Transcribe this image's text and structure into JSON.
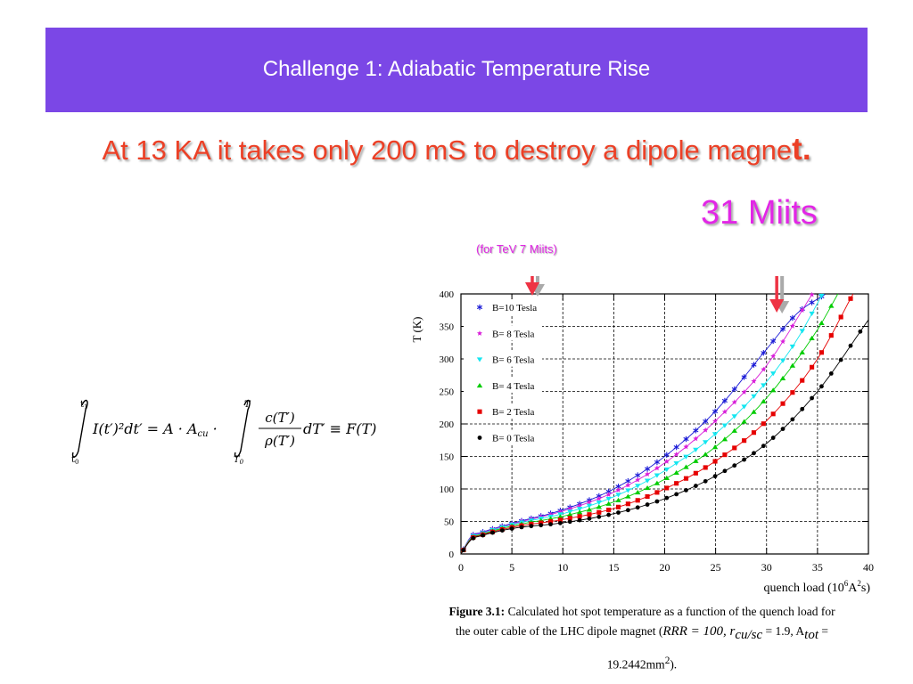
{
  "slide": {
    "title": "Challenge 1: Adiabatic Temperature Rise",
    "subtitle_main": "At 13 KA it takes only 200 mS to destroy a dipole magne",
    "subtitle_tail": "t.",
    "annotation_miits": "31 Miits",
    "annotation_tev": "(for TeV   7 Miits)"
  },
  "formula": {
    "lhs": "I(t′)²dt′ = A · A",
    "cu": "cu",
    "dot": " ·",
    "numerator": "c(T′)",
    "denominator": "ρ(T′)",
    "rhs": "dT′ ≡ F(T)",
    "upper1": "t",
    "upper1_sub": "1",
    "lower1": "t",
    "lower1_sub": "0",
    "upper2": "T",
    "lower2": "T",
    "lower2_sub": "0"
  },
  "caption": {
    "fig_label": "Figure 3.1:",
    "line1": " Calculated hot spot temperature as a function of the quench load for",
    "line2_a": "the outer cable of the LHC dipole magnet (",
    "line2_b": "RRR = 100, r",
    "line2_c": "cu/sc",
    "line2_d": " = 1.9, A",
    "line2_e": "tot",
    "line2_f": " =",
    "line3_a": "19.2442mm",
    "line3_b": "2",
    "line3_c": ")."
  },
  "colors": {
    "title_bar": "#7b47e6",
    "subtitle_red": "#ec4026",
    "magenta": "#e226e6",
    "arrow_red": "#ee3344",
    "arrow_gray": "#aaaaaa"
  },
  "chart_data": {
    "type": "scatter",
    "xlabel_main": "quench load (10",
    "xlabel_sup1": "6",
    "xlabel_mid": "A",
    "xlabel_sup2": "2",
    "xlabel_end": "s)",
    "ylabel": "T (K)",
    "xlim": [
      0,
      40
    ],
    "ylim": [
      0,
      400
    ],
    "xticks": [
      0,
      5,
      10,
      15,
      20,
      25,
      30,
      35,
      40
    ],
    "yticks": [
      0,
      50,
      100,
      150,
      200,
      250,
      300,
      350,
      400
    ],
    "grid": true,
    "legend_position": "top-left",
    "arrows": [
      {
        "x": 7,
        "color": "#ee3344"
      },
      {
        "x": 31,
        "color": "#ee3344"
      }
    ],
    "series": [
      {
        "name": "B=10 Tesla",
        "color": "#1a1ad6",
        "marker": "asterisk",
        "x": [
          0,
          1,
          2,
          5,
          10,
          15,
          20,
          25,
          30,
          33,
          35.8
        ],
        "y": [
          0,
          27,
          33,
          47,
          68,
          100,
          150,
          220,
          315,
          370,
          400
        ]
      },
      {
        "name": "B= 8 Tesla",
        "color": "#d91fd9",
        "marker": "star",
        "x": [
          0,
          1,
          2,
          5,
          10,
          15,
          20,
          25,
          30,
          34.5
        ],
        "y": [
          0,
          26,
          32,
          46,
          66,
          95,
          140,
          205,
          290,
          400
        ]
      },
      {
        "name": "B= 6 Tesla",
        "color": "#14e6f0",
        "marker": "triangle-down",
        "x": [
          0,
          1,
          2,
          5,
          10,
          15,
          20,
          25,
          30,
          33,
          35.5
        ],
        "y": [
          0,
          25,
          31,
          45,
          62,
          88,
          128,
          185,
          265,
          330,
          400
        ]
      },
      {
        "name": "B= 4 Tesla",
        "color": "#00cc00",
        "marker": "triangle-up",
        "x": [
          0,
          1,
          2,
          5,
          10,
          15,
          20,
          25,
          30,
          35,
          37
        ],
        "y": [
          0,
          24,
          30,
          43,
          58,
          80,
          115,
          165,
          240,
          345,
          400
        ]
      },
      {
        "name": "B= 2 Tesla",
        "color": "#e60000",
        "marker": "square",
        "x": [
          0,
          1,
          2,
          5,
          10,
          15,
          20,
          25,
          30,
          35,
          38.5
        ],
        "y": [
          0,
          23,
          29,
          41,
          53,
          70,
          100,
          143,
          205,
          300,
          400
        ]
      },
      {
        "name": "B= 0 Tesla",
        "color": "#000000",
        "marker": "circle",
        "x": [
          0,
          1,
          2,
          5,
          10,
          15,
          20,
          25,
          30,
          35,
          40
        ],
        "y": [
          0,
          22,
          28,
          39,
          48,
          62,
          85,
          120,
          170,
          250,
          360
        ]
      }
    ]
  }
}
